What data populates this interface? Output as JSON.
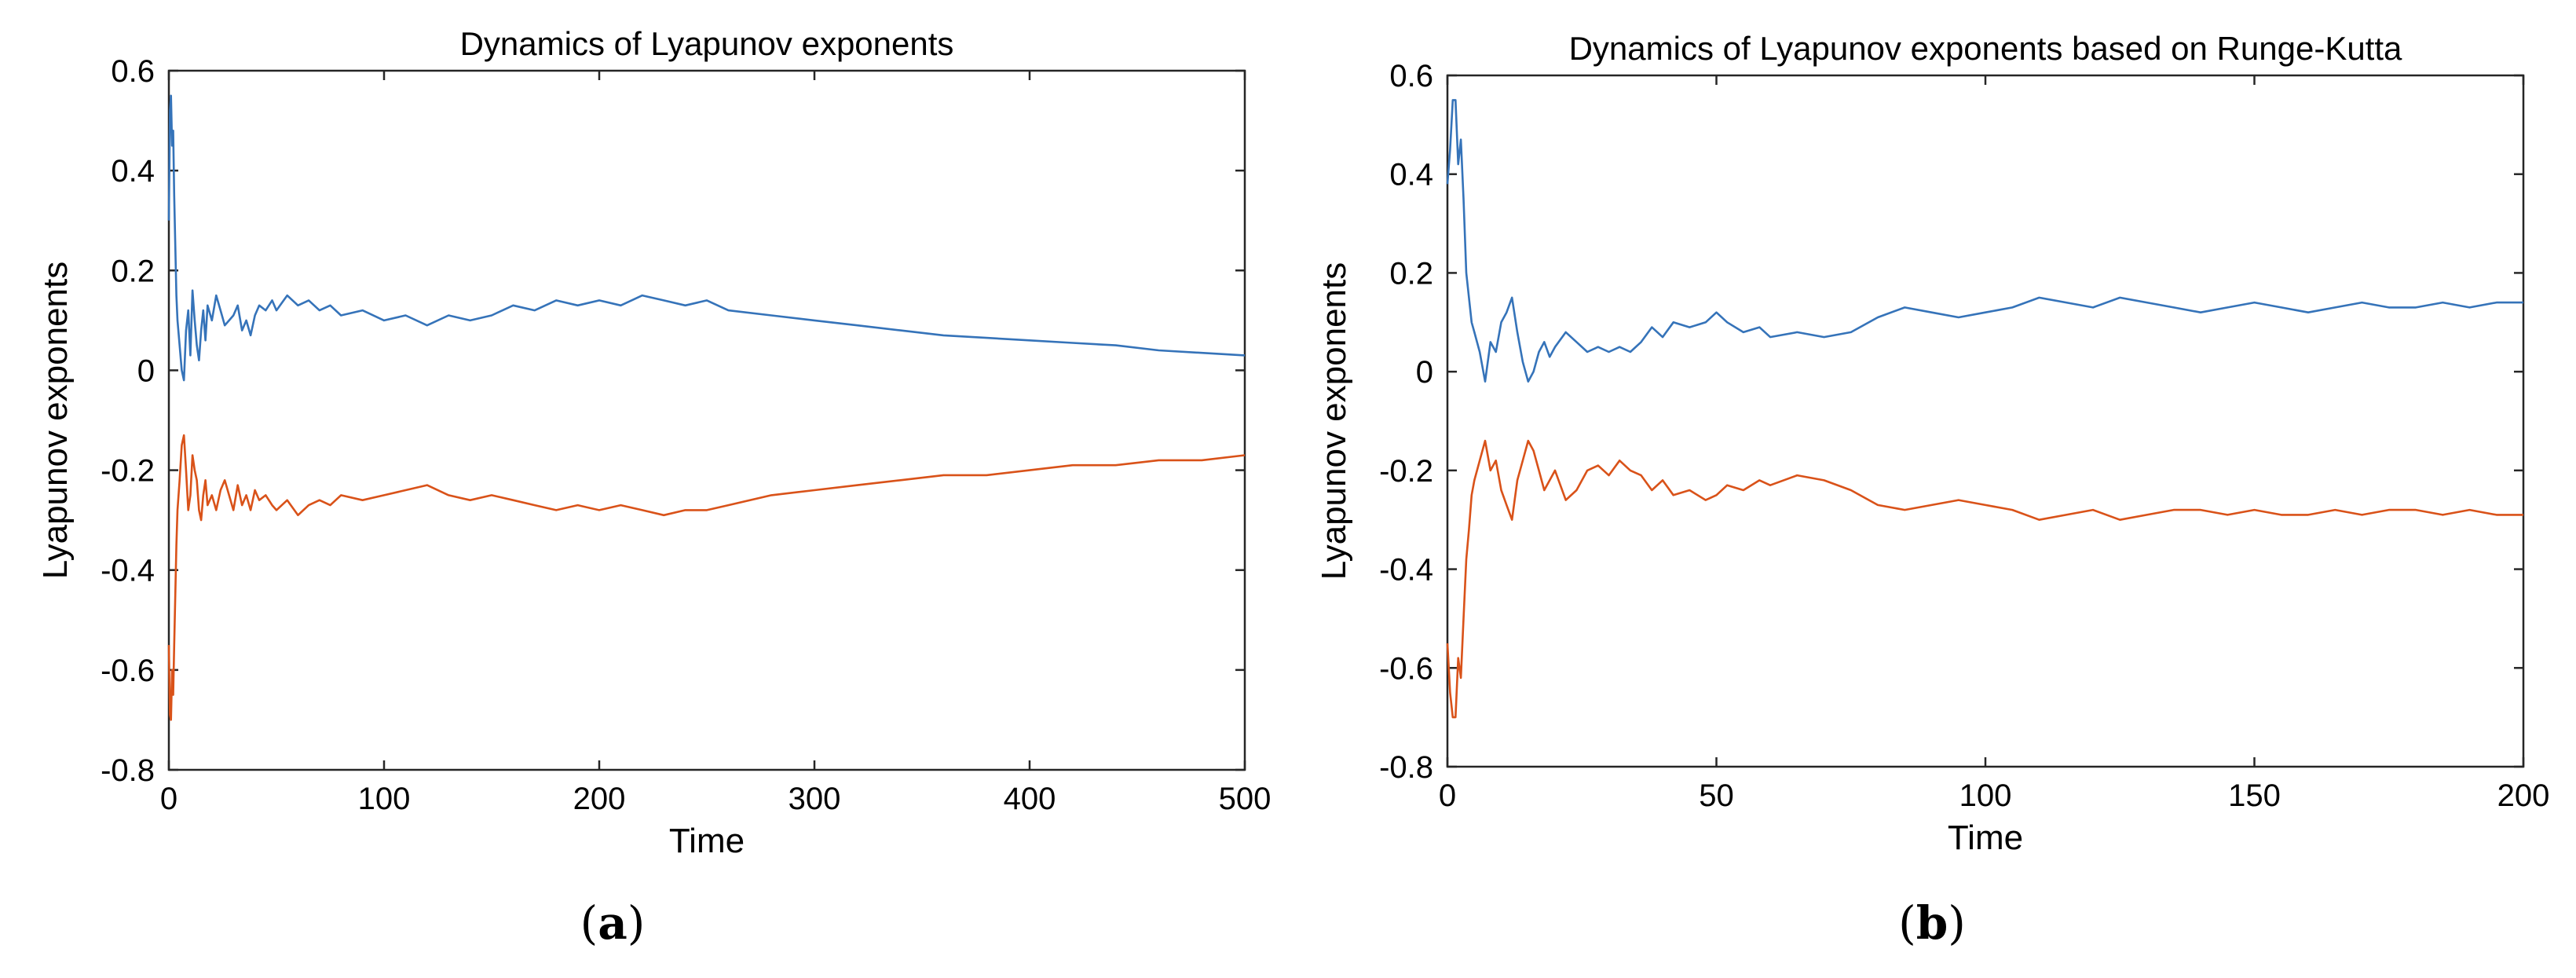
{
  "figure": {
    "captions": [
      {
        "open": "(",
        "letter": "a",
        "close": ")"
      },
      {
        "open": "(",
        "letter": "b",
        "close": ")"
      }
    ]
  },
  "chart_data": [
    {
      "type": "line",
      "title": "Dynamics of Lyapunov exponents",
      "xlabel": "Time",
      "ylabel": "Lyapunov exponents",
      "xlim": [
        0,
        500
      ],
      "ylim": [
        -0.8,
        0.6
      ],
      "xticks": [
        0,
        100,
        200,
        300,
        400,
        500
      ],
      "yticks": [
        0.6,
        0.4,
        0.2,
        0,
        -0.2,
        -0.4,
        -0.6,
        -0.8
      ],
      "grid": false,
      "series": [
        {
          "color": "#3573b9",
          "x": [
            0,
            0.5,
            1,
            1.5,
            2,
            2.5,
            3,
            3.5,
            4,
            5,
            6,
            7,
            8,
            9,
            10,
            11,
            12,
            13,
            14,
            15,
            16,
            17,
            18,
            20,
            22,
            24,
            26,
            28,
            30,
            32,
            34,
            36,
            38,
            40,
            42,
            45,
            48,
            50,
            55,
            60,
            65,
            70,
            75,
            80,
            90,
            100,
            110,
            120,
            130,
            140,
            150,
            160,
            170,
            180,
            190,
            200,
            210,
            220,
            230,
            240,
            250,
            260,
            280,
            300,
            320,
            340,
            360,
            380,
            400,
            420,
            440,
            460,
            480,
            500
          ],
          "y": [
            0.3,
            0.52,
            0.55,
            0.45,
            0.48,
            0.35,
            0.25,
            0.15,
            0.1,
            0.05,
            0.0,
            -0.02,
            0.08,
            0.12,
            0.03,
            0.16,
            0.1,
            0.05,
            0.02,
            0.08,
            0.12,
            0.06,
            0.13,
            0.1,
            0.15,
            0.12,
            0.09,
            0.1,
            0.11,
            0.13,
            0.08,
            0.1,
            0.07,
            0.11,
            0.13,
            0.12,
            0.14,
            0.12,
            0.15,
            0.13,
            0.14,
            0.12,
            0.13,
            0.11,
            0.12,
            0.1,
            0.11,
            0.09,
            0.11,
            0.1,
            0.11,
            0.13,
            0.12,
            0.14,
            0.13,
            0.14,
            0.13,
            0.15,
            0.14,
            0.13,
            0.14,
            0.12,
            0.11,
            0.1,
            0.09,
            0.08,
            0.07,
            0.065,
            0.06,
            0.055,
            0.05,
            0.04,
            0.035,
            0.03
          ]
        },
        {
          "color": "#d95219",
          "x": [
            0,
            0.5,
            1,
            1.5,
            2,
            2.5,
            3,
            3.5,
            4,
            5,
            6,
            7,
            8,
            9,
            10,
            11,
            12,
            13,
            14,
            15,
            16,
            17,
            18,
            20,
            22,
            24,
            26,
            28,
            30,
            32,
            34,
            36,
            38,
            40,
            42,
            45,
            48,
            50,
            55,
            60,
            65,
            70,
            75,
            80,
            90,
            100,
            110,
            120,
            130,
            140,
            150,
            160,
            170,
            180,
            190,
            200,
            210,
            220,
            230,
            240,
            250,
            260,
            280,
            300,
            320,
            340,
            360,
            380,
            400,
            420,
            440,
            460,
            480,
            500
          ],
          "y": [
            -0.55,
            -0.69,
            -0.7,
            -0.6,
            -0.65,
            -0.55,
            -0.45,
            -0.35,
            -0.28,
            -0.22,
            -0.15,
            -0.13,
            -0.2,
            -0.28,
            -0.25,
            -0.17,
            -0.2,
            -0.22,
            -0.28,
            -0.3,
            -0.25,
            -0.22,
            -0.27,
            -0.25,
            -0.28,
            -0.24,
            -0.22,
            -0.25,
            -0.28,
            -0.23,
            -0.27,
            -0.25,
            -0.28,
            -0.24,
            -0.26,
            -0.25,
            -0.27,
            -0.28,
            -0.26,
            -0.29,
            -0.27,
            -0.26,
            -0.27,
            -0.25,
            -0.26,
            -0.25,
            -0.24,
            -0.23,
            -0.25,
            -0.26,
            -0.25,
            -0.26,
            -0.27,
            -0.28,
            -0.27,
            -0.28,
            -0.27,
            -0.28,
            -0.29,
            -0.28,
            -0.28,
            -0.27,
            -0.25,
            -0.24,
            -0.23,
            -0.22,
            -0.21,
            -0.21,
            -0.2,
            -0.19,
            -0.19,
            -0.18,
            -0.18,
            -0.17
          ]
        }
      ]
    },
    {
      "type": "line",
      "title": "Dynamics of Lyapunov exponents based on Runge-Kutta",
      "xlabel": "Time",
      "ylabel": "Lyapunov exponents",
      "xlim": [
        0,
        200
      ],
      "ylim": [
        -0.8,
        0.6
      ],
      "xticks": [
        0,
        50,
        100,
        150,
        200
      ],
      "yticks": [
        0.6,
        0.4,
        0.2,
        0,
        -0.2,
        -0.4,
        -0.6,
        -0.8
      ],
      "grid": false,
      "series": [
        {
          "color": "#3573b9",
          "x": [
            0,
            0.5,
            1,
            1.5,
            2,
            2.5,
            3,
            3.5,
            4,
            4.5,
            5,
            6,
            7,
            8,
            9,
            10,
            11,
            12,
            13,
            14,
            15,
            16,
            17,
            18,
            19,
            20,
            22,
            24,
            26,
            28,
            30,
            32,
            34,
            36,
            38,
            40,
            42,
            45,
            48,
            50,
            52,
            55,
            58,
            60,
            65,
            70,
            75,
            80,
            85,
            90,
            95,
            100,
            105,
            110,
            115,
            120,
            125,
            130,
            135,
            140,
            145,
            150,
            155,
            160,
            165,
            170,
            175,
            180,
            185,
            190,
            195,
            200
          ],
          "y": [
            0.38,
            0.45,
            0.55,
            0.55,
            0.42,
            0.47,
            0.35,
            0.2,
            0.15,
            0.1,
            0.08,
            0.04,
            -0.02,
            0.06,
            0.04,
            0.1,
            0.12,
            0.15,
            0.08,
            0.02,
            -0.02,
            0.0,
            0.04,
            0.06,
            0.03,
            0.05,
            0.08,
            0.06,
            0.04,
            0.05,
            0.04,
            0.05,
            0.04,
            0.06,
            0.09,
            0.07,
            0.1,
            0.09,
            0.1,
            0.12,
            0.1,
            0.08,
            0.09,
            0.07,
            0.08,
            0.07,
            0.08,
            0.11,
            0.13,
            0.12,
            0.11,
            0.12,
            0.13,
            0.15,
            0.14,
            0.13,
            0.15,
            0.14,
            0.13,
            0.12,
            0.13,
            0.14,
            0.13,
            0.12,
            0.13,
            0.14,
            0.13,
            0.13,
            0.14,
            0.13,
            0.14,
            0.14
          ]
        },
        {
          "color": "#d95219",
          "x": [
            0,
            0.5,
            1,
            1.5,
            2,
            2.5,
            3,
            3.5,
            4,
            4.5,
            5,
            6,
            7,
            8,
            9,
            10,
            11,
            12,
            13,
            14,
            15,
            16,
            17,
            18,
            19,
            20,
            22,
            24,
            26,
            28,
            30,
            32,
            34,
            36,
            38,
            40,
            42,
            45,
            48,
            50,
            52,
            55,
            58,
            60,
            65,
            70,
            75,
            80,
            85,
            90,
            95,
            100,
            105,
            110,
            115,
            120,
            125,
            130,
            135,
            140,
            145,
            150,
            155,
            160,
            165,
            170,
            175,
            180,
            185,
            190,
            195,
            200
          ],
          "y": [
            -0.55,
            -0.65,
            -0.7,
            -0.7,
            -0.58,
            -0.62,
            -0.5,
            -0.38,
            -0.32,
            -0.25,
            -0.22,
            -0.18,
            -0.14,
            -0.2,
            -0.18,
            -0.24,
            -0.27,
            -0.3,
            -0.22,
            -0.18,
            -0.14,
            -0.16,
            -0.2,
            -0.24,
            -0.22,
            -0.2,
            -0.26,
            -0.24,
            -0.2,
            -0.19,
            -0.21,
            -0.18,
            -0.2,
            -0.21,
            -0.24,
            -0.22,
            -0.25,
            -0.24,
            -0.26,
            -0.25,
            -0.23,
            -0.24,
            -0.22,
            -0.23,
            -0.21,
            -0.22,
            -0.24,
            -0.27,
            -0.28,
            -0.27,
            -0.26,
            -0.27,
            -0.28,
            -0.3,
            -0.29,
            -0.28,
            -0.3,
            -0.29,
            -0.28,
            -0.28,
            -0.29,
            -0.28,
            -0.29,
            -0.29,
            -0.28,
            -0.29,
            -0.28,
            -0.28,
            -0.29,
            -0.28,
            -0.29,
            -0.29
          ]
        }
      ]
    }
  ]
}
